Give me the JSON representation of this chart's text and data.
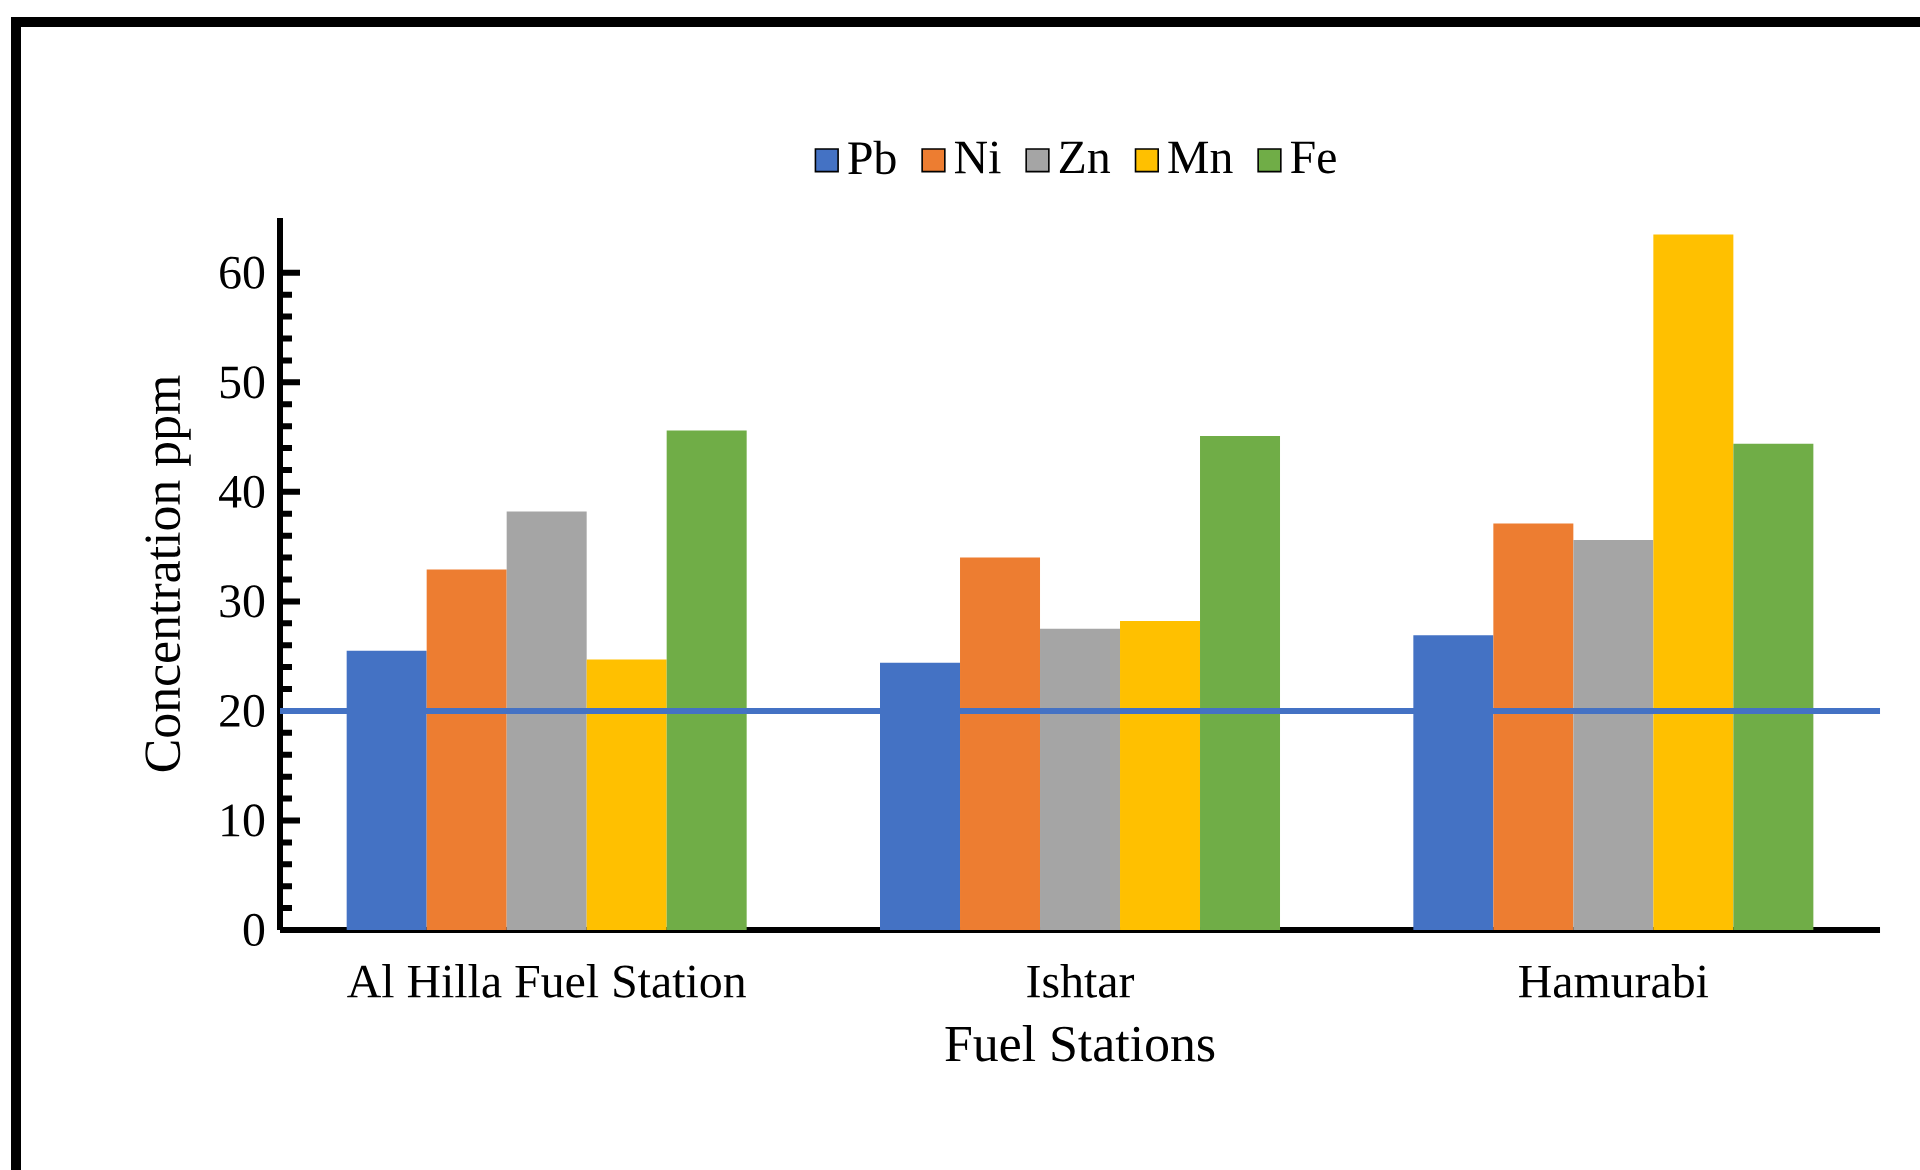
{
  "chart_data": {
    "type": "bar",
    "xlabel": "Fuel Stations",
    "ylabel": "Concentration ppm",
    "categories": [
      "Al Hilla Fuel Station",
      "Ishtar",
      "Hamurabi"
    ],
    "series": [
      {
        "name": "Pb",
        "color": "#4472c4",
        "values": [
          25.5,
          24.4,
          26.9
        ]
      },
      {
        "name": "Ni",
        "color": "#ed7d31",
        "values": [
          32.9,
          34.0,
          37.1
        ]
      },
      {
        "name": "Zn",
        "color": "#a5a5a5",
        "values": [
          38.2,
          27.5,
          35.6
        ]
      },
      {
        "name": "Mn",
        "color": "#ffc000",
        "values": [
          24.7,
          28.2,
          63.5
        ]
      },
      {
        "name": "Fe",
        "color": "#70ad47",
        "values": [
          45.6,
          45.1,
          44.4
        ]
      }
    ],
    "ylim": [
      0,
      65
    ],
    "yticks": [
      0,
      10,
      20,
      30,
      40,
      50,
      60
    ],
    "ref_lines": [
      {
        "axis": "y",
        "value": 20,
        "color": "#4472c4"
      }
    ],
    "legend": "top",
    "grid": false
  }
}
